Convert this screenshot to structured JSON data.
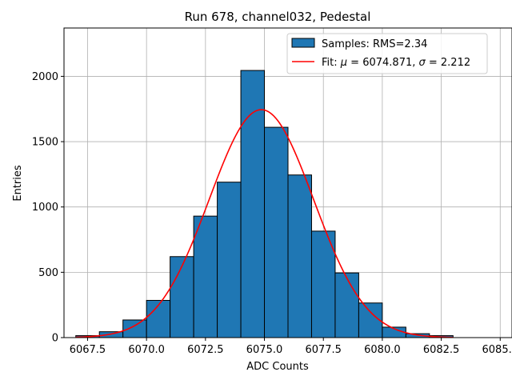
{
  "chart_data": {
    "type": "bar",
    "title": "Run 678, channel032, Pedestal",
    "xlabel": "ADC Counts",
    "ylabel": "Entries",
    "xlim": [
      6066.5,
      6085.5
    ],
    "ylim": [
      0,
      2370
    ],
    "xticks": [
      6067.5,
      6070.0,
      6072.5,
      6075.0,
      6077.5,
      6080.0,
      6082.5,
      6085.0
    ],
    "xtick_labels": [
      "6067.5",
      "6070.0",
      "6072.5",
      "6075.0",
      "6077.5",
      "6080.0",
      "6082.5",
      "6085.0"
    ],
    "yticks": [
      0,
      500,
      1000,
      1500,
      2000
    ],
    "ytick_labels": [
      "0",
      "500",
      "1000",
      "1500",
      "2000"
    ],
    "grid": true,
    "legend_position": "top-right",
    "histogram": {
      "name": "Samples: RMS=2.34",
      "color": "#1f77b4",
      "edge_color": "#000000",
      "bin_edges": [
        6067,
        6068,
        6069,
        6070,
        6071,
        6072,
        6073,
        6074,
        6075,
        6076,
        6077,
        6078,
        6079,
        6080,
        6081,
        6082,
        6083
      ],
      "counts": [
        15,
        45,
        135,
        285,
        620,
        930,
        1190,
        2045,
        1610,
        1245,
        815,
        495,
        265,
        80,
        30,
        15
      ]
    },
    "fit": {
      "name": "Fit: μ = 6074.871, σ = 2.212",
      "label_prefix": "Fit: ",
      "label_mu": "μ",
      "label_mu_value": " = 6074.871, ",
      "label_sigma": "σ",
      "label_sigma_value": " = 2.212",
      "color": "#ff0000",
      "mu": 6074.871,
      "sigma": 2.212,
      "amplitude": 1745,
      "x_range": [
        6067,
        6083
      ]
    }
  }
}
